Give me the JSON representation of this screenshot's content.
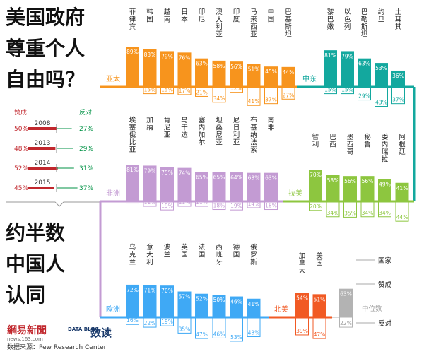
{
  "title": {
    "question_lines": [
      "美国政府",
      "尊重个人",
      "自由吗？"
    ],
    "answer_lines": [
      "约半数",
      "中国人",
      "认同"
    ]
  },
  "china_trend": {
    "approve_label": "赞成",
    "oppose_label": "反对",
    "rows": [
      {
        "year": "2008",
        "approve": 50,
        "oppose": 27,
        "approve_text": "50%",
        "oppose_text": "27%"
      },
      {
        "year": "2013",
        "approve": 48,
        "oppose": 29,
        "approve_text": "48%",
        "oppose_text": "29%"
      },
      {
        "year": "2014",
        "approve": 52,
        "oppose": 31,
        "approve_text": "52%",
        "oppose_text": "31%"
      },
      {
        "year": "2015",
        "approve": 45,
        "oppose": 37,
        "approve_text": "45%",
        "oppose_text": "37%"
      }
    ]
  },
  "legend": {
    "country": "国家",
    "approve": "赞成",
    "median": "中位数",
    "oppose": "反对"
  },
  "colors": {
    "asia": "#f7941d",
    "mideast": "#13a89e",
    "africa": "#c39bd3",
    "latam": "#8dc63f",
    "europe": "#3fa9f5",
    "na": "#f15a24",
    "median": "#b3b3b3",
    "trend_approve": "#c1272d",
    "trend_oppose": "#009245"
  },
  "chart_data": {
    "type": "bar",
    "title": "美国政府尊重个人自由吗？",
    "subtitle": "约半数中国人认同",
    "regions": [
      {
        "key": "asia",
        "name": "亚太",
        "categories": [
          "菲律宾",
          "韩国",
          "越南",
          "日本",
          "印尼",
          "澳大利亚",
          "印度",
          "马来西亚",
          "中国",
          "巴基斯坦"
        ],
        "approve": [
          89,
          83,
          79,
          76,
          63,
          58,
          56,
          51,
          45,
          44
        ],
        "oppose": [
          7,
          15,
          15,
          17,
          21,
          34,
          12,
          41,
          37,
          27
        ]
      },
      {
        "key": "mideast",
        "name": "中东",
        "categories": [
          "黎巴嫩",
          "以色列",
          "巴勒斯坦",
          "约旦",
          "土耳其"
        ],
        "approve": [
          81,
          79,
          63,
          53,
          36
        ],
        "oppose": [
          15,
          15,
          29,
          43,
          37
        ]
      },
      {
        "key": "africa",
        "name": "非洲",
        "categories": [
          "埃塞俄比亚",
          "加纳",
          "肯尼亚",
          "乌干达",
          "塞内加尔",
          "坦桑尼亚",
          "尼日利亚",
          "布基纳法索",
          "南非"
        ],
        "approve": [
          81,
          79,
          75,
          74,
          65,
          65,
          64,
          63,
          63
        ],
        "oppose": [
          4,
          11,
          19,
          11,
          11,
          18,
          19,
          14,
          18
        ]
      },
      {
        "key": "latam",
        "name": "拉美",
        "categories": [
          "智利",
          "巴西",
          "墨西哥",
          "秘鲁",
          "委内瑞拉",
          "阿根廷"
        ],
        "approve": [
          70,
          58,
          56,
          56,
          49,
          41
        ],
        "oppose": [
          20,
          34,
          35,
          34,
          34,
          44
        ]
      },
      {
        "key": "europe",
        "name": "欧洲",
        "categories": [
          "乌克兰",
          "意大利",
          "波兰",
          "英国",
          "法国",
          "西班牙",
          "德国",
          "俄罗斯"
        ],
        "approve": [
          72,
          71,
          70,
          57,
          52,
          50,
          46,
          41
        ],
        "oppose": [
          16,
          22,
          19,
          35,
          47,
          46,
          53,
          43
        ]
      },
      {
        "key": "na",
        "name": "北美",
        "categories": [
          "加拿大",
          "美国"
        ],
        "approve": [
          54,
          51
        ],
        "oppose": [
          39,
          47
        ]
      }
    ],
    "median": {
      "approve": 63,
      "oppose": 22
    }
  },
  "footer": {
    "logo_cn": "網易新聞",
    "logo_url": "news.163.com",
    "datablog": "DATA BLOG",
    "shudu": "数读",
    "source": "数据来源：Pew Research Center"
  }
}
